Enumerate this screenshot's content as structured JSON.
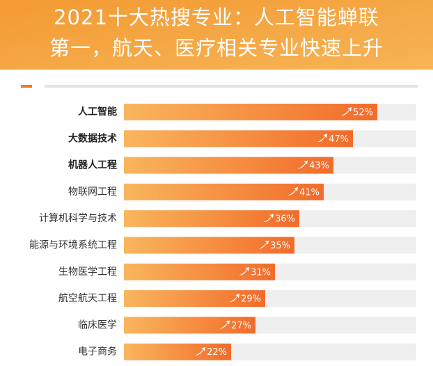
{
  "chart_data": {
    "type": "bar",
    "orientation": "horizontal",
    "title": [
      "2021十大热搜专业：人工智能蝉联",
      "第一，航天、医疗相关专业快速上升"
    ],
    "categories": [
      "人工智能",
      "大数据技术",
      "机器人工程",
      "物联网工程",
      "计算机科学与技术",
      "能源与环境系统工程",
      "生物医学工程",
      "航空航天工程",
      "临床医学",
      "电子商务"
    ],
    "values": [
      52,
      47,
      43,
      41,
      36,
      35,
      31,
      29,
      27,
      22
    ],
    "value_labels": [
      "52%",
      "47%",
      "43%",
      "41%",
      "36%",
      "35%",
      "31%",
      "29%",
      "27%",
      "22%"
    ],
    "color": [
      "#f9b65e",
      "#f26b2a"
    ],
    "xlim": [
      0,
      60
    ]
  }
}
